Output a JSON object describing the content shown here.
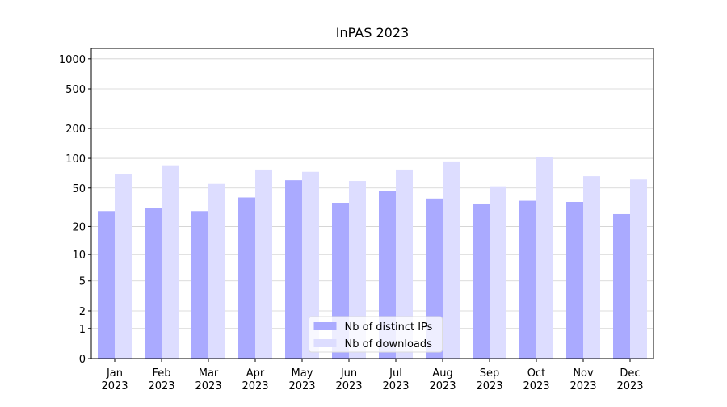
{
  "chart_data": {
    "type": "bar",
    "title": "InPAS 2023",
    "categories": [
      "Jan\n2023",
      "Feb\n2023",
      "Mar\n2023",
      "Apr\n2023",
      "May\n2023",
      "Jun\n2023",
      "Jul\n2023",
      "Aug\n2023",
      "Sep\n2023",
      "Oct\n2023",
      "Nov\n2023",
      "Dec\n2023"
    ],
    "series": [
      {
        "name": "Nb of distinct IPs",
        "color": "#aaaaff",
        "values": [
          29,
          31,
          29,
          40,
          60,
          35,
          47,
          39,
          34,
          37,
          36,
          27
        ]
      },
      {
        "name": "Nb of downloads",
        "color": "#ddddff",
        "values": [
          70,
          85,
          55,
          77,
          73,
          59,
          77,
          93,
          52,
          102,
          66,
          61
        ]
      }
    ],
    "yscale": "log1p",
    "ylim": [
      0,
      1270
    ],
    "yticks": [
      0,
      1,
      2,
      5,
      10,
      20,
      50,
      100,
      200,
      500,
      1000
    ],
    "grid": true,
    "legend": "lower center"
  }
}
